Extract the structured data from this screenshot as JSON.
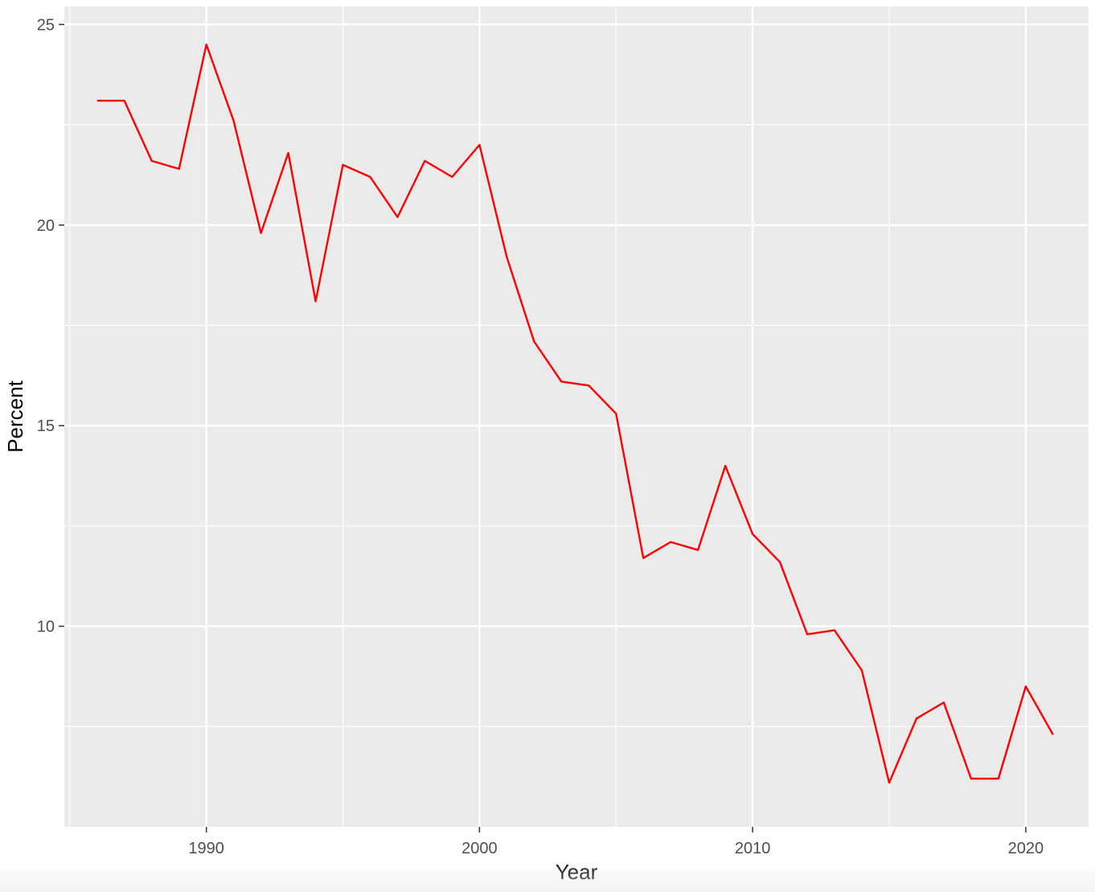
{
  "chart_data": {
    "type": "line",
    "title": "",
    "xlabel": "Year",
    "ylabel": "Percent",
    "xlim": [
      1984.9,
      1987.3
    ],
    "ylim": [
      5.0,
      25.45
    ],
    "x_ticks": [
      1990,
      2000,
      2010,
      2020
    ],
    "x_tick_labels": [
      "1990",
      "2000",
      "2010",
      "2020"
    ],
    "x_minor_ticks": [
      1985,
      1995,
      2005,
      2015
    ],
    "y_ticks": [
      10,
      15,
      20,
      25
    ],
    "y_tick_labels": [
      "10",
      "15",
      "20",
      "25"
    ],
    "y_minor_ticks": [
      7.5,
      12.5,
      17.5,
      22.5
    ],
    "grid": true,
    "legend": "none",
    "colors": {
      "line": "#ff0000",
      "panel": "#ebebeb",
      "grid": "#ffffff"
    },
    "series": [
      {
        "x": [
          1986,
          1987,
          1988,
          1989,
          1990,
          1991,
          1992,
          1993,
          1994,
          1995,
          1996,
          1997,
          1998,
          1999,
          2000,
          2001,
          2002,
          2003,
          2004,
          2005,
          2006,
          2007,
          2008,
          2009,
          2010,
          2011,
          2012,
          2013,
          2014,
          2015,
          2016,
          2017,
          2018,
          2019,
          2020,
          2021
        ],
        "values": [
          23.1,
          23.1,
          21.6,
          21.4,
          24.5,
          22.6,
          19.8,
          21.8,
          18.1,
          21.5,
          21.2,
          20.2,
          21.6,
          21.2,
          22.0,
          19.2,
          17.1,
          16.1,
          16.0,
          15.3,
          11.7,
          12.1,
          11.9,
          14.0,
          12.3,
          11.6,
          9.8,
          9.9,
          8.9,
          6.1,
          7.7,
          8.1,
          6.2,
          6.2,
          8.5,
          7.3
        ]
      }
    ]
  }
}
